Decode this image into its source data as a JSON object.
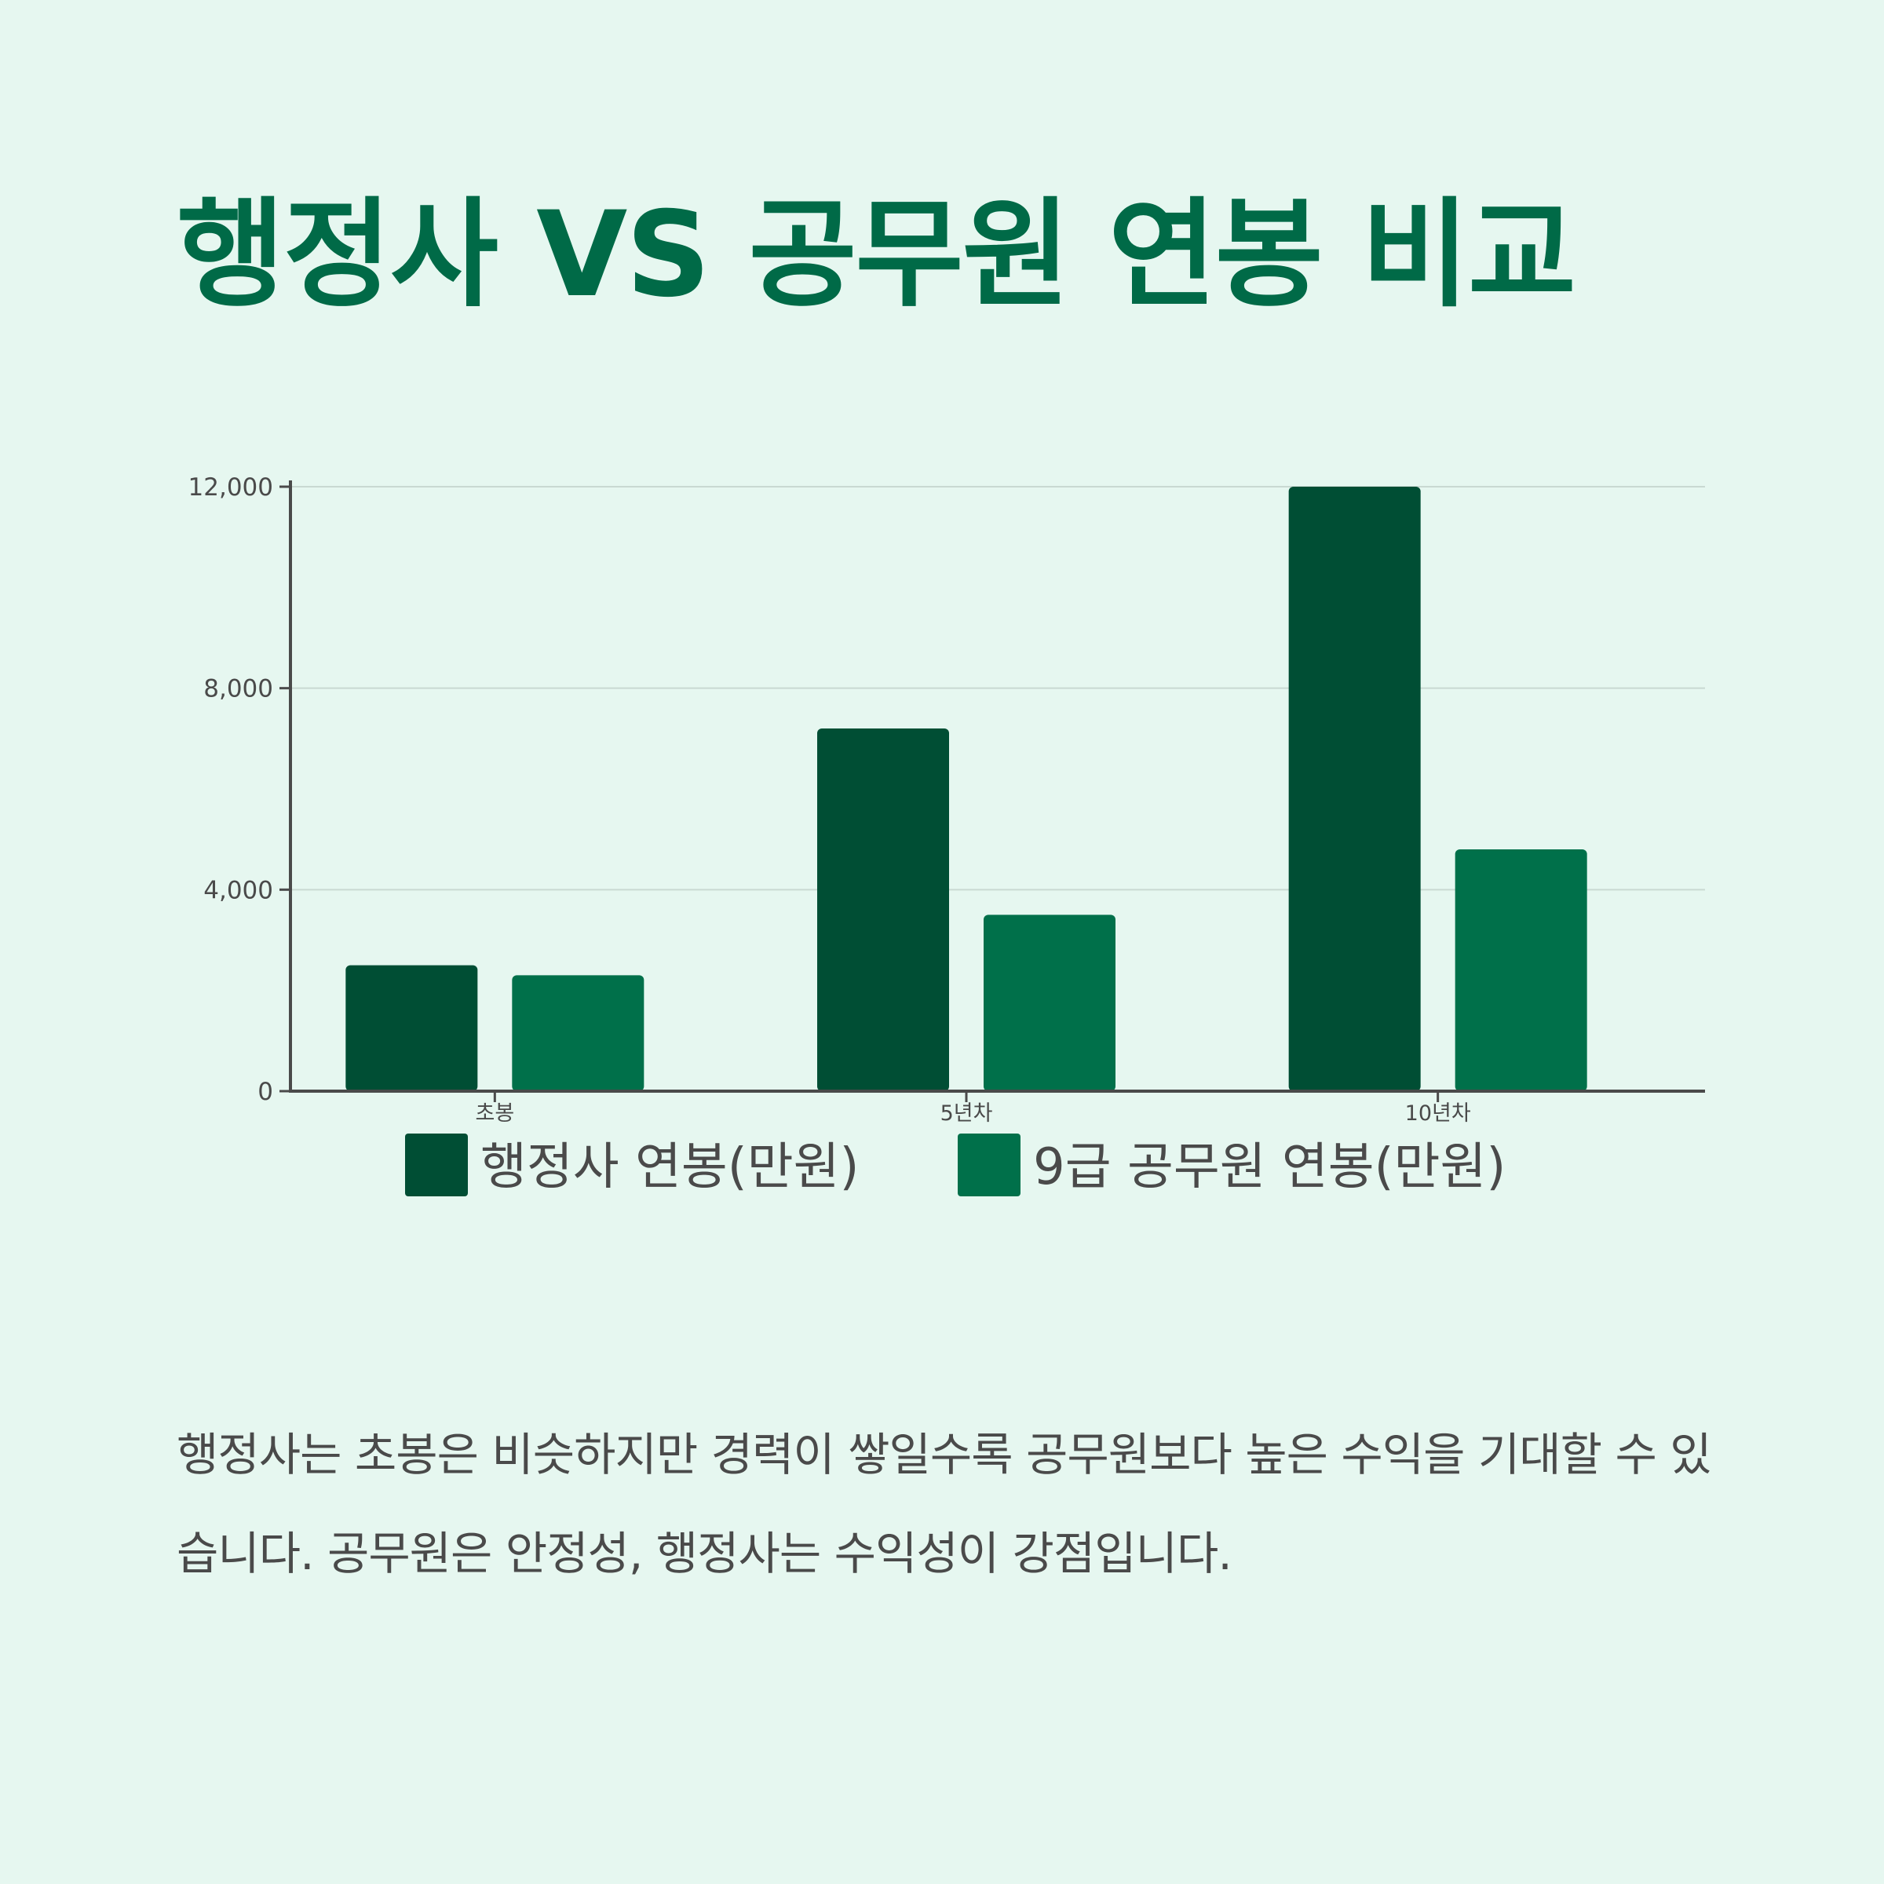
{
  "title": "행정사 VS 공무원 연봉 비교",
  "description": "행정사는 초봉은 비슷하지만 경력이 쌓일수록 공무원보다 높은 수익을 기대할 수 있습니다. 공무원은 안정성, 행정사는 수익성이 강점입니다.",
  "colors": {
    "background": "#e6f7f0",
    "title": "#006a47",
    "text": "#4a4a4a",
    "series_1": "#004e34",
    "series_2": "#00704a",
    "gridline": "#c9d9d2",
    "axis": "#4a4a4a"
  },
  "chart_data": {
    "type": "bar",
    "categories": [
      "초봉",
      "5년차",
      "10년차"
    ],
    "series": [
      {
        "name": "행정사 연봉(만원)",
        "values": [
          2500,
          7200,
          12000
        ]
      },
      {
        "name": "9급 공무원 연봉(만원)",
        "values": [
          2300,
          3500,
          4800
        ]
      }
    ],
    "ylim": [
      0,
      12000
    ],
    "yticks": [
      0,
      4000,
      8000,
      12000
    ],
    "ytick_labels": [
      "0",
      "4,000",
      "8,000",
      "12,000"
    ],
    "grid": true,
    "legend": "bottom",
    "xlabel": "",
    "ylabel": ""
  }
}
